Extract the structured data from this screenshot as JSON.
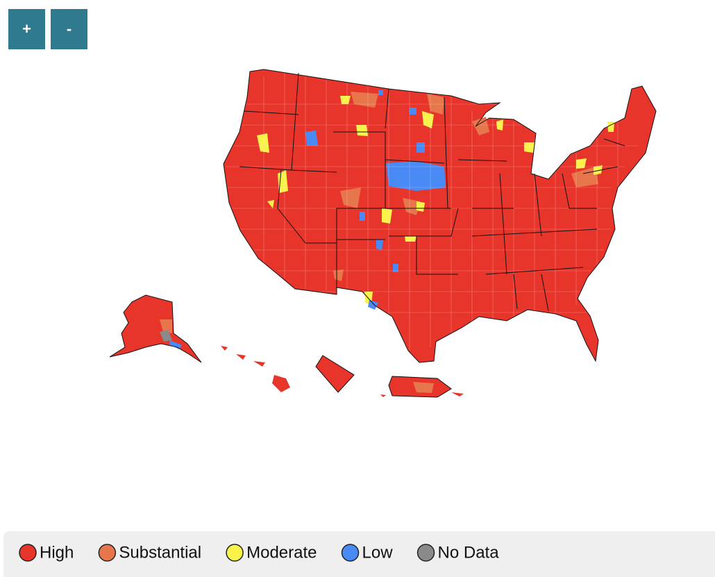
{
  "buttons": [
    "+",
    "-"
  ],
  "legend": [
    {
      "label": "High",
      "color": "#e8352b"
    },
    {
      "label": "Substantial",
      "color": "#e8764c"
    },
    {
      "label": "Moderate",
      "color": "#f8f24a"
    },
    {
      "label": "Low",
      "color": "#4a8af4"
    },
    {
      "label": "No Data",
      "color": "#8a8a8a"
    }
  ]
}
